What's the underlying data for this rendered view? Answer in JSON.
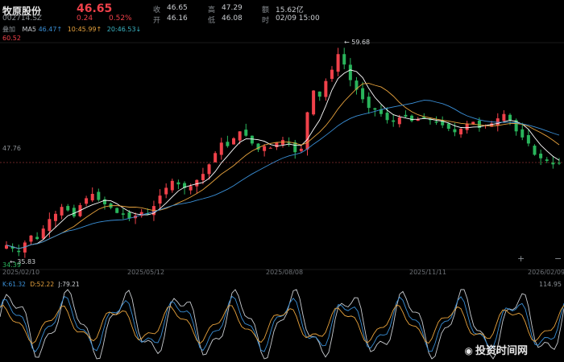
{
  "header": {
    "stock_name": "牧原股份",
    "stock_code": "002714.SZ",
    "last_price": "46.65",
    "change": "0.24",
    "change_pct": "0.52%",
    "quote": [
      {
        "label": "收",
        "value": "46.65"
      },
      {
        "label": "高",
        "value": "47.29"
      },
      {
        "label": "额",
        "value": "15.62亿"
      },
      {
        "label": "开",
        "value": "46.16"
      },
      {
        "label": "低",
        "value": "46.08"
      },
      {
        "label": "时",
        "value": "02/09 15:00"
      }
    ]
  },
  "ma_legend": {
    "prefix": "叠加",
    "ma5_label": "MA5",
    "ma5": "46.47↑",
    "ma10_label": "10:45.99↑",
    "ma20_label": "20:46.53↓"
  },
  "axis": {
    "top_label": "60.52",
    "mid_label": "47.76",
    "low_label": "34.39",
    "high_marker": "← 59.68",
    "low_marker": "← 35.83",
    "dates": [
      "2025/02/10",
      "2025/05/12",
      "2025/08/08",
      "2025/11/11",
      "2026/02/09"
    ]
  },
  "kdj": {
    "k": "K:61.32",
    "d": "D:52.22",
    "j": "J:79.21",
    "right_label": "114.95"
  },
  "controls": {
    "zoom_in": "+",
    "zoom_out": "−"
  },
  "watermark": "投资时间网",
  "colors": {
    "up": "#f0414a",
    "down": "#29b45b",
    "ma5": "#ffffff",
    "ma10": "#e8a33d",
    "ma20": "#3a8fd6"
  },
  "chart_data": {
    "type": "candlestick",
    "ylim": [
      34.39,
      60.52
    ],
    "reference_price": 47.76,
    "closes": [
      37.2,
      36.8,
      36.4,
      37.5,
      38.3,
      37.9,
      39.1,
      40.2,
      40.8,
      41.6,
      41.2,
      40.5,
      41.8,
      42.6,
      43.1,
      42.4,
      41.9,
      41.5,
      40.9,
      40.7,
      40.3,
      40.6,
      41.0,
      40.8,
      41.7,
      42.9,
      43.8,
      44.6,
      44.2,
      43.8,
      44.0,
      44.7,
      45.4,
      46.5,
      47.8,
      49.0,
      48.6,
      49.5,
      50.3,
      49.8,
      48.9,
      48.2,
      48.6,
      48.4,
      49.0,
      49.3,
      48.9,
      47.9,
      48.3,
      52.5,
      55.0,
      54.3,
      56.1,
      57.4,
      59.2,
      58.0,
      56.2,
      55.1,
      54.0,
      53.0,
      52.8,
      52.3,
      51.6,
      51.4,
      51.9,
      52.0,
      51.5,
      51.7,
      51.8,
      51.6,
      51.3,
      51.0,
      50.6,
      50.2,
      50.6,
      51.2,
      51.4,
      50.7,
      51.0,
      51.2,
      51.8,
      52.3,
      51.6,
      50.3,
      49.6,
      48.9,
      47.6,
      47.2,
      46.9,
      46.5,
      46.65
    ]
  }
}
